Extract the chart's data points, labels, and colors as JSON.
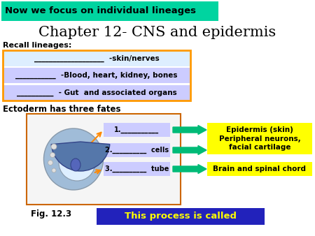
{
  "title": "Chapter 12- CNS and epidermis",
  "banner_text": "Now we focus on individual lineages",
  "banner_bg": "#00d4a0",
  "banner_text_color": "#000000",
  "recall_label": "Recall lineages:",
  "recall_item1": "___________________  -skin/nerves",
  "recall_item2": "___________  -Blood, heart, kidney, bones",
  "recall_item3": "__________  - Gut  and associated organs",
  "recall_item1_bg": "#ddeeff",
  "recall_item2_bg": "#ccccff",
  "recall_item3_bg": "#ccccff",
  "recall_border": "#ff9900",
  "ectoderm_label": "Ectoderm has three fates",
  "fate1": "1.___________",
  "fate2": "2.__________  cells",
  "fate3": "3.__________  tube",
  "fate_bg": "#ccccff",
  "fig_border": "#cc6600",
  "arrow_color": "#00bb77",
  "outcome1": "Epidermis (skin)",
  "outcome2": "Peripheral neurons,\nfacial cartilage",
  "outcome3": "Brain and spinal chord",
  "outcome_bg": "#ffff00",
  "fig_label": "Fig. 12.3",
  "process_text": "This process is called",
  "process_bg": "#2222bb",
  "process_text_color": "#ffff00",
  "bg_color": "#ffffff",
  "body_color": "#a0bcd8",
  "body_edge": "#8899aa",
  "inner_color": "#ddeeff",
  "cap_color": "#5577aa",
  "nucleus_color": "#5566bb",
  "orange_arrow": "#ff8800"
}
